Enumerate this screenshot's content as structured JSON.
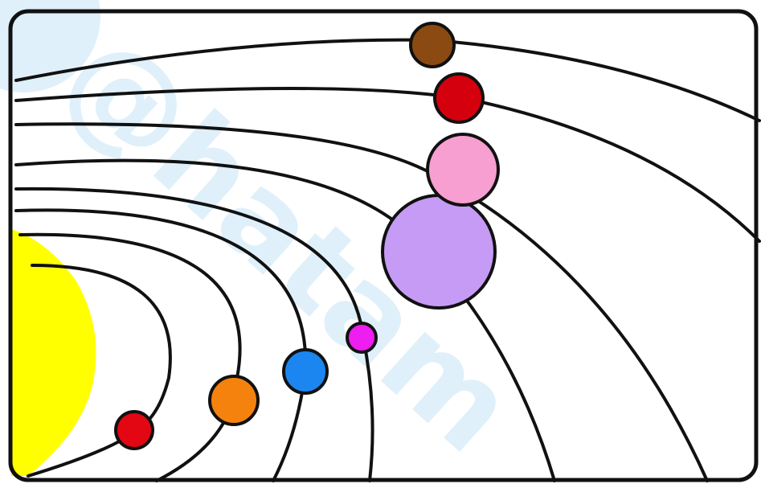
{
  "diagram": {
    "subject": "solar-system",
    "watermark": "@hatam",
    "colors": {
      "sun": "#ffff00",
      "background": "#ffffff",
      "stroke": "#111111",
      "watermark": "#c6e4f7"
    },
    "planets": [
      {
        "name": "mercury-planet",
        "color": "#e30613"
      },
      {
        "name": "venus-planet",
        "color": "#f5820d"
      },
      {
        "name": "earth-planet",
        "color": "#1c86f0"
      },
      {
        "name": "mars-planet",
        "color": "#ee1df0"
      },
      {
        "name": "jupiter-planet",
        "color": "#c69bf5"
      },
      {
        "name": "saturn-planet",
        "color": "#f79fd0"
      },
      {
        "name": "uranus-planet",
        "color": "#d5000d"
      },
      {
        "name": "neptune-planet",
        "color": "#8b4a12"
      }
    ]
  }
}
